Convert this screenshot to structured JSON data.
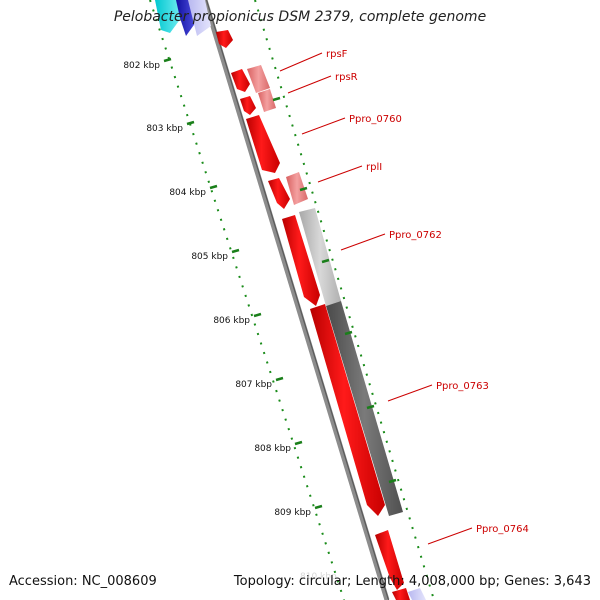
{
  "header": {
    "title": "Pelobacter propionicus DSM 2379, complete genome"
  },
  "footer": {
    "accession": "Accession: NC_008609",
    "summary": "Topology: circular; Length: 4,008,000 bp; Genes: 3,643"
  },
  "axis": {
    "ticks": [
      "802 kbp",
      "803 kbp",
      "804 kbp",
      "805 kbp",
      "806 kbp",
      "807 kbp",
      "808 kbp",
      "809 kbp"
    ]
  },
  "genes": [
    {
      "label": "rpsF",
      "color": "#f08080"
    },
    {
      "label": "rpsR",
      "color": "#f08080"
    },
    {
      "label": "Ppro_0760",
      "color": "#ff0000"
    },
    {
      "label": "rplI",
      "color": "#f08080"
    },
    {
      "label": "Ppro_0762",
      "color": "#c0c0c0"
    },
    {
      "label": "Ppro_0763",
      "color": "#ff0000"
    },
    {
      "label": "Ppro_0764",
      "color": "#ff0000"
    }
  ],
  "colors": {
    "cds_forward": "#ff0000",
    "cds_light": "#f08080",
    "label": "#cc0000",
    "tick": "#1a7f1a",
    "backbone": "#8c8c8c",
    "grey_gene": "#666666",
    "cyan_gene": "#00d8e0",
    "blue_gene": "#3333cc"
  }
}
